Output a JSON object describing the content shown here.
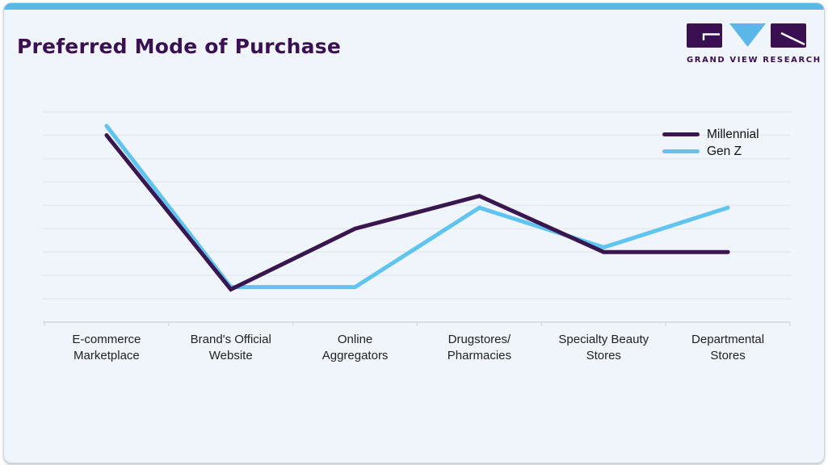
{
  "page": {
    "title": "Preferred Mode of Purchase"
  },
  "logo": {
    "text": "GRAND VIEW RESEARCH"
  },
  "colors": {
    "accent_bar": "#5bb7e7",
    "title_purple": "#3a1053",
    "card_background": "#eff5fa",
    "millennial_line": "#3a1650",
    "genz_line": "#5fc4ef",
    "gridline": "#e2e7ea",
    "axis": "#d8dde1",
    "label_text": "#222222"
  },
  "chart_data": {
    "type": "line",
    "title": "Preferred Mode of Purchase",
    "categories": [
      "E-commerce Marketplace",
      "Brand's Official Website",
      "Online Aggregators",
      "Drugstores/ Pharmacies",
      "Specialty Beauty Stores",
      "Departmental Stores"
    ],
    "category_label_lines": [
      [
        "E-commerce",
        "Marketplace"
      ],
      [
        "Brand's Official",
        "Website"
      ],
      [
        "Online",
        "Aggregators"
      ],
      [
        "Drugstores/",
        "Pharmacies"
      ],
      [
        "Specialty Beauty",
        "Stores"
      ],
      [
        "Departmental",
        "Stores"
      ]
    ],
    "series": [
      {
        "name": "Millennial",
        "color": "#3a1650",
        "values": [
          40,
          7,
          20,
          27,
          15,
          15
        ]
      },
      {
        "name": "Gen Z",
        "color": "#5fc4ef",
        "values": [
          42,
          7.5,
          7.5,
          24.5,
          16,
          24.5
        ]
      }
    ],
    "xlabel": "",
    "ylabel": "",
    "ylim": [
      0,
      45
    ],
    "grid_step": 5,
    "gridlines": "horizontal",
    "y_tick_labels_visible": false,
    "legend_position": "top-right"
  }
}
